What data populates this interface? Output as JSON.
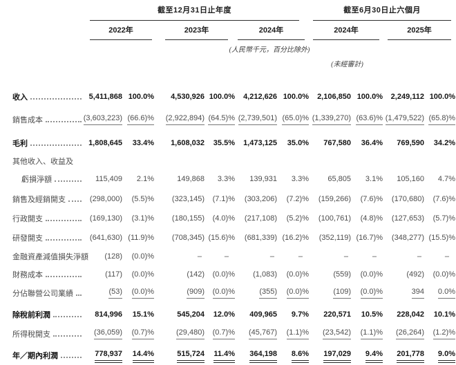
{
  "document": {
    "header": {
      "annual_group_title": "截至12月31日止年度",
      "interim_group_title": "截至6月30日止六個月",
      "year_columns": [
        "2022年",
        "2023年",
        "2024年",
        "2024年",
        "2025年"
      ],
      "currency_note": "(人民幣千元，百分比除外)",
      "unaudited_note": "(未經審計)"
    },
    "table": {
      "rows": [
        {
          "label": "收入",
          "bold": true,
          "indent": false,
          "leader": true,
          "underline": "none",
          "cells": [
            "5,411,868",
            "100.0%",
            "4,530,926",
            "100.0%",
            "4,212,626",
            "100.0%",
            "2,106,850",
            "100.0%",
            "2,249,112",
            "100.0%"
          ]
        },
        {
          "label": "銷售成本",
          "bold": false,
          "indent": false,
          "leader": true,
          "underline": "single",
          "cells": [
            "(3,603,223)",
            "(66.6)%",
            "(2,922,894)",
            "(64.5)%",
            "(2,739,501)",
            "(65.0)%",
            "(1,339,270)",
            "(63.6)%",
            "(1,479,522)",
            "(65.8)%"
          ]
        },
        {
          "label": "毛利",
          "bold": true,
          "indent": false,
          "leader": true,
          "underline": "none",
          "cells": [
            "1,808,645",
            "33.4%",
            "1,608,032",
            "35.5%",
            "1,473,125",
            "35.0%",
            "767,580",
            "36.4%",
            "769,590",
            "34.2%"
          ]
        },
        {
          "label": "其他收入、收益及",
          "bold": false,
          "indent": false,
          "leader": false,
          "underline": "none",
          "cells": [
            "",
            "",
            "",
            "",
            "",
            "",
            "",
            "",
            "",
            ""
          ]
        },
        {
          "label": "虧損淨額",
          "bold": false,
          "indent": true,
          "leader": true,
          "underline": "none",
          "cells": [
            "115,409",
            "2.1%",
            "149,868",
            "3.3%",
            "139,931",
            "3.3%",
            "65,805",
            "3.1%",
            "105,160",
            "4.7%"
          ]
        },
        {
          "label": "銷售及經銷開支",
          "bold": false,
          "indent": false,
          "leader": true,
          "underline": "none",
          "cells": [
            "(298,000)",
            "(5.5)%",
            "(323,145)",
            "(7.1)%",
            "(303,206)",
            "(7.2)%",
            "(159,266)",
            "(7.6)%",
            "(170,680)",
            "(7.6)%"
          ]
        },
        {
          "label": "行政開支",
          "bold": false,
          "indent": false,
          "leader": true,
          "underline": "none",
          "cells": [
            "(169,130)",
            "(3.1)%",
            "(180,155)",
            "(4.0)%",
            "(217,108)",
            "(5.2)%",
            "(100,761)",
            "(4.8)%",
            "(127,653)",
            "(5.7)%"
          ]
        },
        {
          "label": "研發開支",
          "bold": false,
          "indent": false,
          "leader": true,
          "underline": "none",
          "cells": [
            "(641,630)",
            "(11.9)%",
            "(708,345)",
            "(15.6)%",
            "(681,339)",
            "(16.2)%",
            "(352,119)",
            "(16.7)%",
            "(348,277)",
            "(15.5)%"
          ]
        },
        {
          "label": "金融資產減值損失淨額",
          "bold": false,
          "indent": false,
          "leader": false,
          "underline": "none",
          "cells": [
            "(128)",
            "(0.0)%",
            "–",
            "–",
            "–",
            "–",
            "–",
            "–",
            "–",
            "–"
          ]
        },
        {
          "label": "財務成本",
          "bold": false,
          "indent": false,
          "leader": true,
          "underline": "none",
          "cells": [
            "(117)",
            "(0.0)%",
            "(142)",
            "(0.0)%",
            "(1,083)",
            "(0.0)%",
            "(559)",
            "(0.0)%",
            "(492)",
            "(0.0)%"
          ]
        },
        {
          "label": "分佔聯營公司業績",
          "bold": false,
          "indent": false,
          "leader": true,
          "underline": "single",
          "cells": [
            "(53)",
            "(0.0)%",
            "(909)",
            "(0.0)%",
            "(355)",
            "(0.0)%",
            "(109)",
            "(0.0)%",
            "394",
            "0.0%"
          ]
        },
        {
          "label": "除稅前利潤",
          "bold": true,
          "indent": false,
          "leader": true,
          "underline": "none",
          "cells": [
            "814,996",
            "15.1%",
            "545,204",
            "12.0%",
            "409,965",
            "9.7%",
            "220,571",
            "10.5%",
            "228,042",
            "10.1%"
          ]
        },
        {
          "label": "所得稅開支",
          "bold": false,
          "indent": false,
          "leader": true,
          "underline": "single",
          "cells": [
            "(36,059)",
            "(0.7)%",
            "(29,480)",
            "(0.7)%",
            "(45,767)",
            "(1.1)%",
            "(23,542)",
            "(1.1)%",
            "(26,264)",
            "(1.2)%"
          ]
        },
        {
          "label": "年／期內利潤",
          "bold": true,
          "indent": false,
          "leader": true,
          "underline": "double",
          "cells": [
            "778,937",
            "14.4%",
            "515,724",
            "11.4%",
            "364,198",
            "8.6%",
            "197,029",
            "9.4%",
            "201,778",
            "9.0%"
          ]
        }
      ]
    }
  }
}
